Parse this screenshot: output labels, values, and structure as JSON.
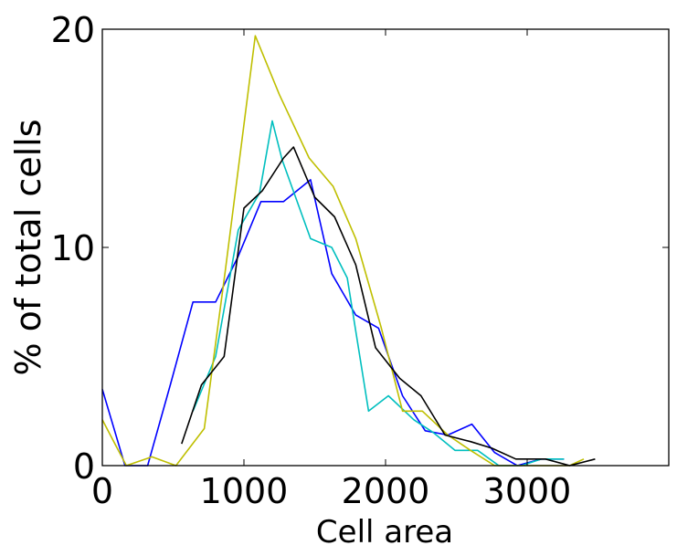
{
  "chart_data": {
    "type": "line",
    "title": "",
    "xlabel": "Cell area",
    "ylabel": "% of total cells",
    "xlim": [
      0,
      4000
    ],
    "ylim": [
      0,
      20
    ],
    "x_ticks": [
      0,
      1000,
      2000,
      3000
    ],
    "x_tick_labels": [
      "0",
      "1000",
      "2000",
      "3000"
    ],
    "y_ticks": [
      0,
      10,
      20
    ],
    "y_tick_labels": [
      "0",
      "10",
      "20"
    ],
    "grid": false,
    "legend": "none",
    "series": [
      {
        "color": "#0000ff",
        "x": [
          0,
          160,
          320,
          480,
          640,
          800,
          960,
          1120,
          1280,
          1470,
          1620,
          1790,
          1950,
          2120,
          2280,
          2440,
          2610,
          2770,
          2930,
          3100,
          3260
        ],
        "y": [
          3.5,
          0.0,
          0.0,
          3.7,
          7.5,
          7.5,
          9.6,
          12.1,
          12.1,
          13.1,
          8.8,
          6.9,
          6.3,
          3.2,
          1.6,
          1.4,
          1.9,
          0.6,
          0.0,
          0.3,
          0.3
        ]
      },
      {
        "color": "#00bfbf",
        "x": [
          640,
          800,
          960,
          1110,
          1200,
          1270,
          1470,
          1620,
          1730,
          1880,
          2020,
          2200,
          2340,
          2490,
          2650,
          2800,
          2960,
          3100,
          3260
        ],
        "y": [
          2.5,
          5.0,
          10.8,
          12.5,
          15.8,
          14.0,
          10.4,
          10.0,
          8.6,
          2.5,
          3.2,
          2.1,
          1.5,
          0.7,
          0.7,
          0.0,
          0.0,
          0.3,
          0.3
        ]
      },
      {
        "color": "#bfbf00",
        "x": [
          0,
          170,
          350,
          520,
          720,
          870,
          1080,
          1250,
          1460,
          1630,
          1790,
          1970,
          2120,
          2260,
          2440,
          2600,
          2770,
          2950,
          3110,
          3300,
          3400
        ],
        "y": [
          2.1,
          0.0,
          0.4,
          0.0,
          1.7,
          9.0,
          19.7,
          17.0,
          14.1,
          12.8,
          10.4,
          6.3,
          2.5,
          2.5,
          1.4,
          0.7,
          0.0,
          0.0,
          0.0,
          0.0,
          0.3
        ]
      },
      {
        "color": "#000000",
        "x": [
          560,
          700,
          860,
          1000,
          1130,
          1280,
          1350,
          1500,
          1640,
          1790,
          1930,
          2100,
          2250,
          2420,
          2600,
          2750,
          2920,
          3130,
          3300,
          3480
        ],
        "y": [
          1.0,
          3.7,
          5.0,
          11.8,
          12.6,
          14.1,
          14.6,
          12.3,
          11.4,
          9.2,
          5.4,
          4.0,
          3.2,
          1.4,
          1.1,
          0.8,
          0.3,
          0.3,
          0.0,
          0.3
        ]
      }
    ]
  }
}
